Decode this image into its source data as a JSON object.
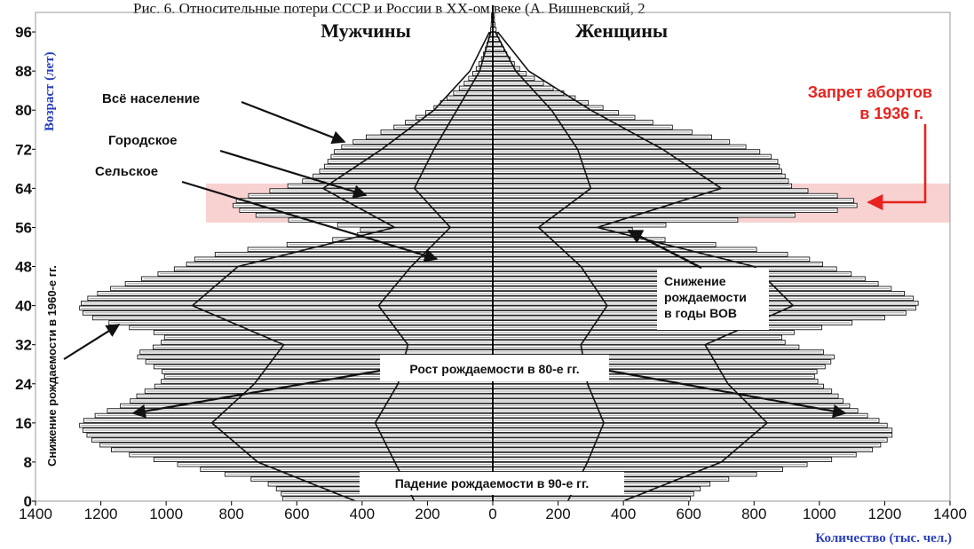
{
  "title_fragment": "Рис. 6. Относительные потери СССР и России в XX-ом веке (А. Вишневский, 2",
  "chart_data": {
    "type": "population pyramid",
    "group_labels": [
      "Мужчины",
      "Женщины"
    ],
    "ylabel": "Возраст (лет)",
    "xlabel": "Количество (тыс. чел.)",
    "x_ticks": [
      "1400",
      "1200",
      "1000",
      "800",
      "600",
      "400",
      "200",
      "0",
      "200",
      "400",
      "600",
      "800",
      "1000",
      "1200",
      "1400"
    ],
    "y_ticks": [
      "0",
      "8",
      "16",
      "24",
      "32",
      "40",
      "48",
      "56",
      "64",
      "72",
      "80",
      "88",
      "96"
    ],
    "xlim": [
      -1400,
      1400
    ],
    "ylim": [
      0,
      100
    ],
    "highlight_band": {
      "age_from": 57,
      "age_to": 65,
      "color": "#f7c9c9"
    },
    "annotations": {
      "all_population": "Всё население",
      "urban": "Городское",
      "rural": "Сельское",
      "abortion_ban_line1": "Запрет абортов",
      "abortion_ban_line2": "в 1936 г.",
      "ww2_decline_line1": "Снижение",
      "ww2_decline_line2": "рождаемости",
      "ww2_decline_line3": "в годы ВОВ",
      "growth_80s": "Рост рождаемости в 80-е гг.",
      "fall_90s": "Падение рождаемости в 90-е гг.",
      "decline_1960s": "Снижение рождаемости в 1960-е гг."
    },
    "series": [
      {
        "name": "Всё население",
        "ages": [
          0,
          2,
          4,
          6,
          8,
          10,
          12,
          14,
          16,
          18,
          20,
          22,
          24,
          26,
          28,
          30,
          32,
          34,
          36,
          38,
          40,
          42,
          44,
          46,
          48,
          50,
          52,
          54,
          56,
          58,
          60,
          62,
          64,
          66,
          68,
          70,
          72,
          74,
          76,
          78,
          80,
          82,
          84,
          86,
          88,
          90,
          92,
          94,
          96,
          98
        ],
        "male": [
          640,
          650,
          700,
          860,
          1000,
          1150,
          1220,
          1250,
          1270,
          1200,
          1120,
          1080,
          1020,
          1000,
          1050,
          1100,
          1020,
          1000,
          1150,
          1250,
          1270,
          1230,
          1150,
          1050,
          950,
          900,
          700,
          420,
          400,
          700,
          800,
          780,
          650,
          560,
          520,
          500,
          480,
          410,
          320,
          250,
          190,
          150,
          110,
          80,
          55,
          38,
          25,
          15,
          8,
          4
        ],
        "female": [
          600,
          620,
          680,
          850,
          1000,
          1150,
          1200,
          1230,
          1200,
          1130,
          1080,
          1050,
          1000,
          980,
          1030,
          1050,
          900,
          880,
          1050,
          1250,
          1310,
          1280,
          1200,
          1120,
          1030,
          950,
          760,
          450,
          420,
          860,
          1120,
          1100,
          920,
          900,
          880,
          870,
          800,
          700,
          580,
          460,
          360,
          270,
          200,
          140,
          90,
          58,
          38,
          22,
          12,
          5
        ]
      },
      {
        "name": "Городское",
        "ages": [
          0,
          8,
          16,
          24,
          32,
          40,
          48,
          56,
          64,
          72,
          80,
          88,
          96
        ],
        "male": [
          420,
          720,
          860,
          730,
          640,
          920,
          780,
          300,
          520,
          340,
          180,
          70,
          10
        ],
        "female": [
          400,
          700,
          840,
          720,
          650,
          920,
          800,
          320,
          700,
          520,
          300,
          110,
          15
        ]
      },
      {
        "name": "Сельское",
        "ages": [
          0,
          8,
          16,
          24,
          32,
          40,
          48,
          56,
          64,
          72,
          80,
          88,
          96
        ],
        "male": [
          240,
          300,
          360,
          290,
          260,
          350,
          250,
          130,
          240,
          180,
          110,
          40,
          6
        ],
        "female": [
          230,
          290,
          340,
          290,
          270,
          350,
          270,
          140,
          300,
          260,
          180,
          70,
          8
        ]
      }
    ]
  }
}
